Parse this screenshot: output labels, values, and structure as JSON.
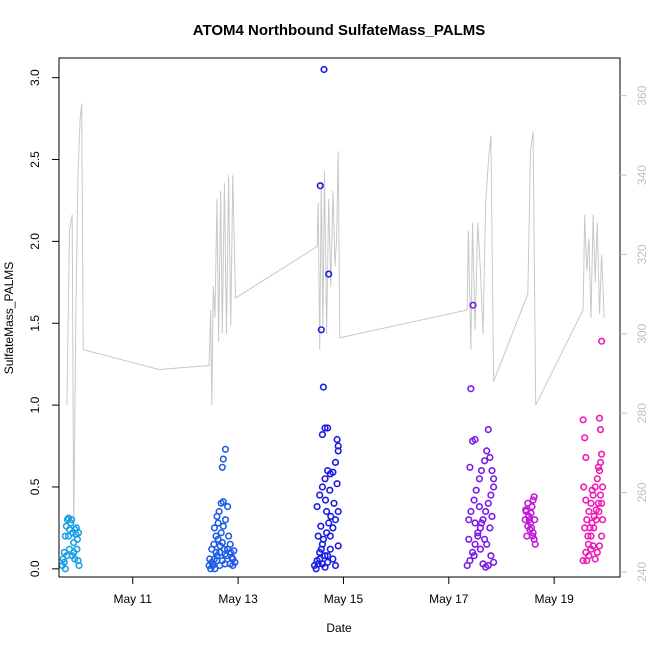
{
  "chart_data": {
    "type": "scatter",
    "title": "ATOM4 Northbound SulfateMass_PALMS",
    "xlabel": "Date",
    "ylabel": "SulfateMass_PALMS",
    "x_unit": "days (day of May)",
    "xlim": [
      9.6,
      20.25
    ],
    "ylim": [
      -0.05,
      3.12
    ],
    "y2lim": [
      238.7,
      369.5
    ],
    "x_ticks": [
      11,
      13,
      15,
      17,
      19
    ],
    "x_tick_labels": [
      "May 11",
      "May 13",
      "May 15",
      "May 17",
      "May 19"
    ],
    "y_ticks": [
      0.0,
      0.5,
      1.0,
      1.5,
      2.0,
      2.5,
      3.0
    ],
    "y_tick_labels": [
      "0.0",
      "0.5",
      "1.0",
      "1.5",
      "2.0",
      "2.5",
      "3.0"
    ],
    "y2_ticks": [
      240,
      260,
      280,
      300,
      320,
      340,
      360
    ],
    "y2_tick_labels": [
      "240",
      "260",
      "280",
      "300",
      "320",
      "340",
      "360"
    ],
    "grid": false,
    "legend": "none",
    "background_line": {
      "color": "#c8c8c8",
      "axis": "right",
      "points": [
        [
          9.75,
          282
        ],
        [
          9.8,
          326
        ],
        [
          9.85,
          330
        ],
        [
          9.88,
          250
        ],
        [
          9.92,
          306
        ],
        [
          9.96,
          340
        ],
        [
          10.0,
          354
        ],
        [
          10.03,
          358
        ],
        [
          10.06,
          296
        ],
        [
          11.5,
          291
        ],
        [
          12.45,
          292
        ],
        [
          12.48,
          306
        ],
        [
          12.5,
          282
        ],
        [
          12.53,
          312
        ],
        [
          12.56,
          304
        ],
        [
          12.6,
          334
        ],
        [
          12.63,
          298
        ],
        [
          12.67,
          336
        ],
        [
          12.7,
          300
        ],
        [
          12.74,
          338
        ],
        [
          12.78,
          300
        ],
        [
          12.82,
          340
        ],
        [
          12.86,
          302
        ],
        [
          12.9,
          340
        ],
        [
          12.95,
          309
        ],
        [
          14.5,
          322
        ],
        [
          14.52,
          333
        ],
        [
          14.55,
          296
        ],
        [
          14.58,
          338
        ],
        [
          14.61,
          302
        ],
        [
          14.64,
          341
        ],
        [
          14.68,
          300
        ],
        [
          14.72,
          334
        ],
        [
          14.76,
          312
        ],
        [
          14.8,
          336
        ],
        [
          14.84,
          317
        ],
        [
          14.87,
          324
        ],
        [
          14.9,
          346
        ],
        [
          14.93,
          299
        ],
        [
          17.35,
          306
        ],
        [
          17.37,
          326
        ],
        [
          17.42,
          296
        ],
        [
          17.45,
          328
        ],
        [
          17.5,
          301
        ],
        [
          17.55,
          328
        ],
        [
          17.6,
          316
        ],
        [
          17.65,
          300
        ],
        [
          17.7,
          333
        ],
        [
          17.75,
          343
        ],
        [
          17.8,
          350
        ],
        [
          17.85,
          288
        ],
        [
          18.5,
          310
        ],
        [
          18.55,
          346
        ],
        [
          18.6,
          351
        ],
        [
          18.65,
          282
        ],
        [
          19.55,
          306
        ],
        [
          19.58,
          330
        ],
        [
          19.62,
          316
        ],
        [
          19.66,
          324
        ],
        [
          19.7,
          304
        ],
        [
          19.74,
          330
        ],
        [
          19.78,
          313
        ],
        [
          19.82,
          328
        ],
        [
          19.86,
          305
        ],
        [
          19.9,
          320
        ],
        [
          19.95,
          304
        ]
      ]
    },
    "series": [
      {
        "color": "#1aa0e6",
        "points": [
          [
            9.66,
            0.02
          ],
          [
            9.68,
            0.06
          ],
          [
            9.7,
            0.1
          ],
          [
            9.72,
            0.2
          ],
          [
            9.74,
            0.26
          ],
          [
            9.76,
            0.3
          ],
          [
            9.78,
            0.31
          ],
          [
            9.8,
            0.24
          ],
          [
            9.82,
            0.28
          ],
          [
            9.84,
            0.3
          ],
          [
            9.86,
            0.22
          ],
          [
            9.88,
            0.16
          ],
          [
            9.9,
            0.24
          ],
          [
            9.92,
            0.21
          ],
          [
            9.94,
            0.12
          ],
          [
            9.96,
            0.05
          ],
          [
            9.98,
            0.02
          ],
          [
            9.7,
            0.04
          ],
          [
            9.75,
            0.08
          ],
          [
            9.8,
            0.12
          ],
          [
            9.85,
            0.08
          ],
          [
            9.9,
            0.06
          ],
          [
            9.93,
            0.25
          ],
          [
            9.97,
            0.22
          ],
          [
            9.72,
            0.0
          ],
          [
            9.88,
            0.1
          ],
          [
            9.95,
            0.18
          ],
          [
            9.78,
            0.2
          ]
        ]
      },
      {
        "color": "#1f5ce6",
        "points": [
          [
            12.45,
            0.02
          ],
          [
            12.5,
            0.04
          ],
          [
            12.55,
            0.06
          ],
          [
            12.6,
            0.08
          ],
          [
            12.65,
            0.1
          ],
          [
            12.7,
            0.05
          ],
          [
            12.75,
            0.03
          ],
          [
            12.8,
            0.12
          ],
          [
            12.85,
            0.15
          ],
          [
            12.9,
            0.06
          ],
          [
            12.48,
            0.0
          ],
          [
            12.52,
            0.02
          ],
          [
            12.58,
            0.1
          ],
          [
            12.62,
            0.18
          ],
          [
            12.68,
            0.22
          ],
          [
            12.72,
            0.26
          ],
          [
            12.76,
            0.3
          ],
          [
            12.6,
            0.32
          ],
          [
            12.64,
            0.35
          ],
          [
            12.68,
            0.4
          ],
          [
            12.72,
            0.41
          ],
          [
            12.8,
            0.38
          ],
          [
            12.55,
            0.25
          ],
          [
            12.58,
            0.2
          ],
          [
            12.62,
            0.28
          ],
          [
            12.66,
            0.14
          ],
          [
            12.7,
            0.16
          ],
          [
            12.74,
            0.12
          ],
          [
            12.78,
            0.08
          ],
          [
            12.82,
            0.2
          ],
          [
            12.86,
            0.1
          ],
          [
            12.9,
            0.02
          ],
          [
            12.94,
            0.04
          ],
          [
            12.5,
            0.12
          ],
          [
            12.54,
            0.15
          ],
          [
            12.46,
            0.06
          ],
          [
            12.7,
            0.62
          ],
          [
            12.72,
            0.67
          ],
          [
            12.76,
            0.73
          ],
          [
            12.6,
            0.05
          ],
          [
            12.65,
            0.02
          ],
          [
            12.75,
            0.09
          ],
          [
            12.85,
            0.03
          ],
          [
            12.88,
            0.07
          ],
          [
            12.92,
            0.11
          ],
          [
            12.56,
            0.0
          ]
        ]
      },
      {
        "color": "#1a1ae6",
        "points": [
          [
            14.45,
            0.02
          ],
          [
            14.5,
            0.05
          ],
          [
            14.55,
            0.1
          ],
          [
            14.6,
            0.15
          ],
          [
            14.65,
            0.08
          ],
          [
            14.7,
            0.04
          ],
          [
            14.75,
            0.2
          ],
          [
            14.8,
            0.25
          ],
          [
            14.85,
            0.3
          ],
          [
            14.9,
            0.35
          ],
          [
            14.48,
            0.0
          ],
          [
            14.52,
            0.03
          ],
          [
            14.58,
            0.12
          ],
          [
            14.62,
            0.18
          ],
          [
            14.68,
            0.22
          ],
          [
            14.72,
            0.28
          ],
          [
            14.76,
            0.32
          ],
          [
            14.5,
            0.38
          ],
          [
            14.55,
            0.45
          ],
          [
            14.6,
            0.5
          ],
          [
            14.65,
            0.55
          ],
          [
            14.7,
            0.6
          ],
          [
            14.75,
            0.58
          ],
          [
            14.8,
            0.59
          ],
          [
            14.85,
            0.65
          ],
          [
            14.9,
            0.72
          ],
          [
            14.6,
            0.82
          ],
          [
            14.65,
            0.86
          ],
          [
            14.7,
            0.86
          ],
          [
            14.88,
            0.79
          ],
          [
            14.62,
            1.11
          ],
          [
            14.58,
            1.46
          ],
          [
            14.56,
            2.34
          ],
          [
            14.63,
            3.05
          ],
          [
            14.72,
            1.8
          ],
          [
            14.55,
            0.06
          ],
          [
            14.6,
            0.03
          ],
          [
            14.65,
            0.01
          ],
          [
            14.7,
            0.08
          ],
          [
            14.75,
            0.12
          ],
          [
            14.8,
            0.06
          ],
          [
            14.85,
            0.02
          ],
          [
            14.9,
            0.14
          ],
          [
            14.52,
            0.2
          ],
          [
            14.57,
            0.26
          ],
          [
            14.66,
            0.42
          ],
          [
            14.74,
            0.48
          ],
          [
            14.82,
            0.4
          ],
          [
            14.88,
            0.52
          ],
          [
            14.9,
            0.75
          ],
          [
            14.68,
            0.35
          ]
        ]
      },
      {
        "color": "#7a1ae6",
        "points": [
          [
            17.35,
            0.02
          ],
          [
            17.4,
            0.05
          ],
          [
            17.45,
            0.1
          ],
          [
            17.5,
            0.15
          ],
          [
            17.55,
            0.2
          ],
          [
            17.6,
            0.25
          ],
          [
            17.65,
            0.3
          ],
          [
            17.7,
            0.35
          ],
          [
            17.75,
            0.4
          ],
          [
            17.8,
            0.45
          ],
          [
            17.85,
            0.5
          ],
          [
            17.38,
            0.3
          ],
          [
            17.42,
            0.35
          ],
          [
            17.48,
            0.42
          ],
          [
            17.52,
            0.48
          ],
          [
            17.58,
            0.55
          ],
          [
            17.62,
            0.6
          ],
          [
            17.68,
            0.66
          ],
          [
            17.72,
            0.72
          ],
          [
            17.78,
            0.68
          ],
          [
            17.82,
            0.6
          ],
          [
            17.85,
            0.55
          ],
          [
            17.4,
            0.62
          ],
          [
            17.45,
            0.78
          ],
          [
            17.5,
            0.79
          ],
          [
            17.75,
            0.85
          ],
          [
            17.42,
            1.1
          ],
          [
            17.46,
            1.61
          ],
          [
            17.6,
            0.12
          ],
          [
            17.65,
            0.03
          ],
          [
            17.7,
            0.01
          ],
          [
            17.75,
            0.02
          ],
          [
            17.8,
            0.08
          ],
          [
            17.85,
            0.04
          ],
          [
            17.38,
            0.18
          ],
          [
            17.55,
            0.22
          ],
          [
            17.62,
            0.28
          ],
          [
            17.68,
            0.18
          ],
          [
            17.78,
            0.25
          ],
          [
            17.82,
            0.32
          ],
          [
            17.58,
            0.38
          ],
          [
            17.5,
            0.28
          ],
          [
            17.72,
            0.15
          ],
          [
            17.48,
            0.08
          ]
        ]
      },
      {
        "color": "#c21ad6",
        "points": [
          [
            18.45,
            0.3
          ],
          [
            18.47,
            0.35
          ],
          [
            18.5,
            0.4
          ],
          [
            18.52,
            0.32
          ],
          [
            18.55,
            0.28
          ],
          [
            18.57,
            0.25
          ],
          [
            18.6,
            0.22
          ],
          [
            18.62,
            0.18
          ],
          [
            18.64,
            0.15
          ],
          [
            18.48,
            0.2
          ],
          [
            18.5,
            0.26
          ],
          [
            18.53,
            0.3
          ],
          [
            18.56,
            0.34
          ],
          [
            18.58,
            0.38
          ],
          [
            18.6,
            0.42
          ],
          [
            18.62,
            0.44
          ],
          [
            18.46,
            0.36
          ],
          [
            18.54,
            0.24
          ],
          [
            18.59,
            0.2
          ],
          [
            18.63,
            0.3
          ]
        ]
      },
      {
        "color": "#ee1ab4",
        "points": [
          [
            19.55,
            0.05
          ],
          [
            19.6,
            0.1
          ],
          [
            19.65,
            0.15
          ],
          [
            19.7,
            0.2
          ],
          [
            19.75,
            0.25
          ],
          [
            19.8,
            0.3
          ],
          [
            19.85,
            0.35
          ],
          [
            19.9,
            0.4
          ],
          [
            19.58,
            0.25
          ],
          [
            19.62,
            0.3
          ],
          [
            19.66,
            0.35
          ],
          [
            19.7,
            0.4
          ],
          [
            19.74,
            0.45
          ],
          [
            19.78,
            0.5
          ],
          [
            19.82,
            0.55
          ],
          [
            19.86,
            0.6
          ],
          [
            19.88,
            0.65
          ],
          [
            19.9,
            0.7
          ],
          [
            19.56,
            0.5
          ],
          [
            19.6,
            0.68
          ],
          [
            19.58,
            0.8
          ],
          [
            19.55,
            0.91
          ],
          [
            19.86,
            0.92
          ],
          [
            19.88,
            0.85
          ],
          [
            19.9,
            1.39
          ],
          [
            19.62,
            0.05
          ],
          [
            19.66,
            0.08
          ],
          [
            19.7,
            0.12
          ],
          [
            19.74,
            0.14
          ],
          [
            19.78,
            0.06
          ],
          [
            19.82,
            0.1
          ],
          [
            19.86,
            0.14
          ],
          [
            19.9,
            0.2
          ],
          [
            19.64,
            0.2
          ],
          [
            19.68,
            0.25
          ],
          [
            19.72,
            0.28
          ],
          [
            19.76,
            0.32
          ],
          [
            19.8,
            0.36
          ],
          [
            19.84,
            0.4
          ],
          [
            19.88,
            0.45
          ],
          [
            19.92,
            0.5
          ],
          [
            19.6,
            0.42
          ],
          [
            19.72,
            0.48
          ],
          [
            19.84,
            0.62
          ],
          [
            19.92,
            0.3
          ]
        ]
      }
    ]
  }
}
